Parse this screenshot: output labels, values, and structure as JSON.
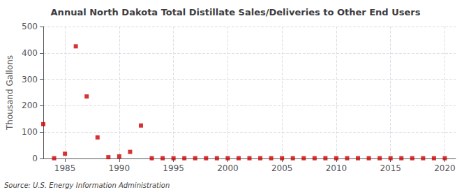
{
  "chart_data": {
    "type": "scatter",
    "title": "Annual North Dakota Total Distillate Sales/Deliveries to Other End Users",
    "ylabel": "Thousand Gallons",
    "annotation": "Source: U.S. Energy Information Administration",
    "x": [
      1983,
      1984,
      1985,
      1986,
      1987,
      1988,
      1989,
      1990,
      1991,
      1992,
      1993,
      1994,
      1995,
      1996,
      1997,
      1998,
      1999,
      2000,
      2001,
      2002,
      2003,
      2004,
      2005,
      2006,
      2007,
      2008,
      2009,
      2010,
      2011,
      2012,
      2013,
      2014,
      2015,
      2016,
      2017,
      2018,
      2019,
      2020
    ],
    "values": [
      130,
      1,
      18,
      425,
      235,
      80,
      5,
      8,
      25,
      125,
      1,
      1,
      1,
      1,
      1,
      1,
      1,
      1,
      1,
      1,
      1,
      1,
      1,
      1,
      1,
      1,
      1,
      1,
      1,
      1,
      1,
      1,
      1,
      1,
      1,
      1,
      1,
      1
    ],
    "color": "#cc0000",
    "marker": "square",
    "xlim": [
      1983,
      2021
    ],
    "xticks": [
      1985,
      1990,
      1995,
      2000,
      2005,
      2010,
      2015,
      2020
    ],
    "ylim": [
      0,
      500
    ],
    "yticks": [
      0,
      100,
      200,
      300,
      400,
      500
    ],
    "grid": true
  }
}
